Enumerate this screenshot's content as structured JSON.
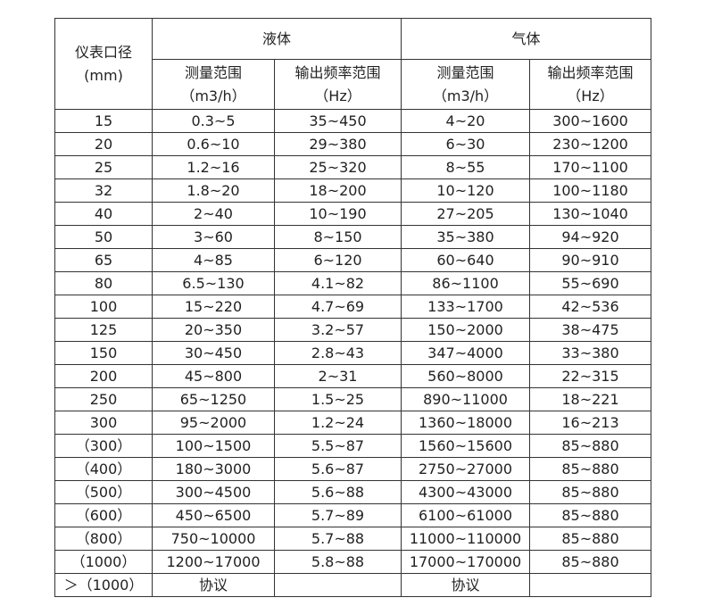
{
  "table": {
    "header": {
      "size": [
        "仪表口径",
        "(mm)"
      ],
      "liquid": "液体",
      "gas": "气体",
      "range": [
        "测量范围",
        "（m3/h）"
      ],
      "freq": [
        "输出频率范围",
        "（Hz）"
      ]
    },
    "rows": [
      [
        "15",
        "0.3~5",
        "35~450",
        "4~20",
        "300~1600"
      ],
      [
        "20",
        "0.6~10",
        "29~380",
        "6~30",
        "230~1200"
      ],
      [
        "25",
        "1.2~16",
        "25~320",
        "8~55",
        "170~1100"
      ],
      [
        "32",
        "1.8~20",
        "18~200",
        "10~120",
        "100~1180"
      ],
      [
        "40",
        "2~40",
        "10~190",
        "27~205",
        "130~1040"
      ],
      [
        "50",
        "3~60",
        "8~150",
        "35~380",
        "94~920"
      ],
      [
        "65",
        "4~85",
        "6~120",
        "60~640",
        "90~910"
      ],
      [
        "80",
        "6.5~130",
        "4.1~82",
        "86~1100",
        "55~690"
      ],
      [
        "100",
        "15~220",
        "4.7~69",
        "133~1700",
        "42~536"
      ],
      [
        "125",
        "20~350",
        "3.2~57",
        "150~2000",
        "38~475"
      ],
      [
        "150",
        "30~450",
        "2.8~43",
        "347~4000",
        "33~380"
      ],
      [
        "200",
        "45~800",
        "2~31",
        "560~8000",
        "22~315"
      ],
      [
        "250",
        "65~1250",
        "1.5~25",
        "890~11000",
        "18~221"
      ],
      [
        "300",
        "95~2000",
        "1.2~24",
        "1360~18000",
        "16~213"
      ],
      [
        "（300）",
        "100~1500",
        "5.5~87",
        "1560~15600",
        "85~880"
      ],
      [
        "（400）",
        "180~3000",
        "5.6~87",
        "2750~27000",
        "85~880"
      ],
      [
        "（500）",
        "300~4500",
        "5.6~88",
        "4300~43000",
        "85~880"
      ],
      [
        "（600）",
        "450~6500",
        "5.7~89",
        "6100~61000",
        "85~880"
      ],
      [
        "（800）",
        "750~10000",
        "5.7~88",
        "11000~110000",
        "85~880"
      ],
      [
        "（1000）",
        "1200~17000",
        "5.8~88",
        "17000~170000",
        "85~880"
      ]
    ],
    "last_row": {
      "size": "＞（1000）",
      "liquid_range": "协议",
      "gas_range": "协议"
    }
  }
}
